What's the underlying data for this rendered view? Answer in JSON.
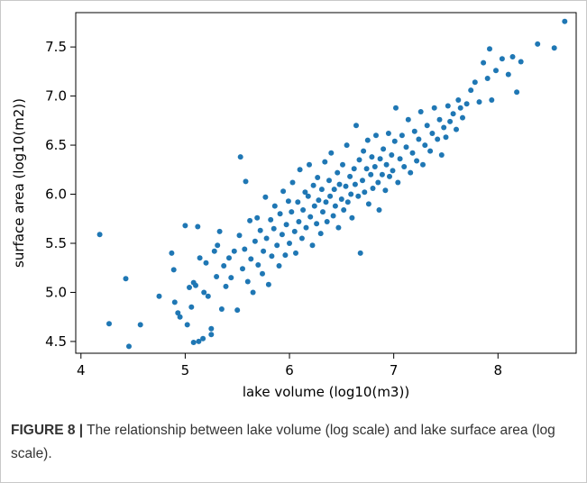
{
  "caption": {
    "figure_label": "FIGURE 8 |",
    "text": " The relationship between lake volume (log scale) and lake surface area (log scale)."
  },
  "colors": {
    "points": "#1f77b4"
  },
  "chart_data": {
    "type": "scatter",
    "xlabel": "lake volume (log10(m3))",
    "ylabel": "surface area (log10(m2))",
    "xlim": [
      3.95,
      8.75
    ],
    "ylim": [
      4.38,
      7.85
    ],
    "x_ticks": [
      4,
      5,
      6,
      7,
      8
    ],
    "y_ticks": [
      4.5,
      5.0,
      5.5,
      6.0,
      6.5,
      7.0,
      7.5
    ],
    "x_tick_labels": [
      "4",
      "5",
      "6",
      "7",
      "8"
    ],
    "y_tick_labels": [
      "4.5",
      "5.0",
      "5.5",
      "6.0",
      "6.5",
      "7.0",
      "7.5"
    ],
    "grid": false,
    "points": [
      [
        4.18,
        5.59
      ],
      [
        4.27,
        4.68
      ],
      [
        4.43,
        5.14
      ],
      [
        4.46,
        4.45
      ],
      [
        4.57,
        4.67
      ],
      [
        4.75,
        4.96
      ],
      [
        4.87,
        5.4
      ],
      [
        4.89,
        5.23
      ],
      [
        4.9,
        4.9
      ],
      [
        4.93,
        4.79
      ],
      [
        4.95,
        4.75
      ],
      [
        5.0,
        5.68
      ],
      [
        5.02,
        4.67
      ],
      [
        5.04,
        5.05
      ],
      [
        5.06,
        4.85
      ],
      [
        5.08,
        5.1
      ],
      [
        5.08,
        4.49
      ],
      [
        5.1,
        5.07
      ],
      [
        5.12,
        5.67
      ],
      [
        5.13,
        4.5
      ],
      [
        5.14,
        5.35
      ],
      [
        5.17,
        4.53
      ],
      [
        5.18,
        5.0
      ],
      [
        5.2,
        5.3
      ],
      [
        5.22,
        4.96
      ],
      [
        5.25,
        4.63
      ],
      [
        5.25,
        4.57
      ],
      [
        5.28,
        5.42
      ],
      [
        5.3,
        5.16
      ],
      [
        5.31,
        5.48
      ],
      [
        5.33,
        5.62
      ],
      [
        5.35,
        4.83
      ],
      [
        5.37,
        5.27
      ],
      [
        5.39,
        5.06
      ],
      [
        5.42,
        5.35
      ],
      [
        5.44,
        5.15
      ],
      [
        5.47,
        5.42
      ],
      [
        5.5,
        4.82
      ],
      [
        5.52,
        5.58
      ],
      [
        5.53,
        6.38
      ],
      [
        5.55,
        5.24
      ],
      [
        5.57,
        5.44
      ],
      [
        5.58,
        6.13
      ],
      [
        5.6,
        5.11
      ],
      [
        5.62,
        5.73
      ],
      [
        5.63,
        5.34
      ],
      [
        5.65,
        5.0
      ],
      [
        5.67,
        5.52
      ],
      [
        5.69,
        5.76
      ],
      [
        5.7,
        5.28
      ],
      [
        5.72,
        5.63
      ],
      [
        5.74,
        5.19
      ],
      [
        5.75,
        5.42
      ],
      [
        5.77,
        5.97
      ],
      [
        5.78,
        5.55
      ],
      [
        5.8,
        5.08
      ],
      [
        5.82,
        5.74
      ],
      [
        5.83,
        5.37
      ],
      [
        5.85,
        5.65
      ],
      [
        5.86,
        5.88
      ],
      [
        5.88,
        5.48
      ],
      [
        5.9,
        5.27
      ],
      [
        5.91,
        5.8
      ],
      [
        5.93,
        5.59
      ],
      [
        5.94,
        6.03
      ],
      [
        5.96,
        5.38
      ],
      [
        5.97,
        5.69
      ],
      [
        5.99,
        5.93
      ],
      [
        6.0,
        5.5
      ],
      [
        6.02,
        5.82
      ],
      [
        6.03,
        6.12
      ],
      [
        6.05,
        5.62
      ],
      [
        6.06,
        5.4
      ],
      [
        6.08,
        5.92
      ],
      [
        6.09,
        5.72
      ],
      [
        6.1,
        6.25
      ],
      [
        6.12,
        5.55
      ],
      [
        6.13,
        5.84
      ],
      [
        6.15,
        6.02
      ],
      [
        6.16,
        5.66
      ],
      [
        6.18,
        5.98
      ],
      [
        6.19,
        6.3
      ],
      [
        6.2,
        5.77
      ],
      [
        6.22,
        5.48
      ],
      [
        6.23,
        6.09
      ],
      [
        6.24,
        5.88
      ],
      [
        6.26,
        5.7
      ],
      [
        6.27,
        6.17
      ],
      [
        6.28,
        5.94
      ],
      [
        6.3,
        5.6
      ],
      [
        6.31,
        6.05
      ],
      [
        6.32,
        5.82
      ],
      [
        6.34,
        6.33
      ],
      [
        6.35,
        5.92
      ],
      [
        6.36,
        5.72
      ],
      [
        6.38,
        6.14
      ],
      [
        6.39,
        5.98
      ],
      [
        6.4,
        6.42
      ],
      [
        6.42,
        5.78
      ],
      [
        6.43,
        6.05
      ],
      [
        6.44,
        5.88
      ],
      [
        6.46,
        6.22
      ],
      [
        6.47,
        5.66
      ],
      [
        6.48,
        6.1
      ],
      [
        6.5,
        5.95
      ],
      [
        6.51,
        6.3
      ],
      [
        6.52,
        5.84
      ],
      [
        6.54,
        6.08
      ],
      [
        6.55,
        6.5
      ],
      [
        6.56,
        5.92
      ],
      [
        6.58,
        6.18
      ],
      [
        6.59,
        6.0
      ],
      [
        6.6,
        5.76
      ],
      [
        6.62,
        6.26
      ],
      [
        6.63,
        6.1
      ],
      [
        6.64,
        6.7
      ],
      [
        6.66,
        5.98
      ],
      [
        6.67,
        6.35
      ],
      [
        6.68,
        5.4
      ],
      [
        6.7,
        6.14
      ],
      [
        6.71,
        6.44
      ],
      [
        6.72,
        6.02
      ],
      [
        6.74,
        6.26
      ],
      [
        6.75,
        6.55
      ],
      [
        6.76,
        5.9
      ],
      [
        6.78,
        6.2
      ],
      [
        6.79,
        6.38
      ],
      [
        6.8,
        6.06
      ],
      [
        6.82,
        6.28
      ],
      [
        6.83,
        6.6
      ],
      [
        6.85,
        6.12
      ],
      [
        6.86,
        5.84
      ],
      [
        6.87,
        6.36
      ],
      [
        6.89,
        6.2
      ],
      [
        6.9,
        6.46
      ],
      [
        6.92,
        6.04
      ],
      [
        6.93,
        6.3
      ],
      [
        6.95,
        6.62
      ],
      [
        6.96,
        6.18
      ],
      [
        6.98,
        6.4
      ],
      [
        6.99,
        6.24
      ],
      [
        7.01,
        6.54
      ],
      [
        7.02,
        6.88
      ],
      [
        7.04,
        6.12
      ],
      [
        7.06,
        6.36
      ],
      [
        7.08,
        6.6
      ],
      [
        7.1,
        6.28
      ],
      [
        7.12,
        6.48
      ],
      [
        7.14,
        6.76
      ],
      [
        7.16,
        6.22
      ],
      [
        7.18,
        6.42
      ],
      [
        7.2,
        6.64
      ],
      [
        7.22,
        6.34
      ],
      [
        7.24,
        6.56
      ],
      [
        7.26,
        6.84
      ],
      [
        7.28,
        6.3
      ],
      [
        7.3,
        6.5
      ],
      [
        7.32,
        6.7
      ],
      [
        7.35,
        6.44
      ],
      [
        7.37,
        6.62
      ],
      [
        7.39,
        6.88
      ],
      [
        7.42,
        6.56
      ],
      [
        7.44,
        6.76
      ],
      [
        7.46,
        6.4
      ],
      [
        7.48,
        6.68
      ],
      [
        7.5,
        6.58
      ],
      [
        7.52,
        6.9
      ],
      [
        7.54,
        6.74
      ],
      [
        7.57,
        6.82
      ],
      [
        7.6,
        6.66
      ],
      [
        7.62,
        6.96
      ],
      [
        7.64,
        6.88
      ],
      [
        7.66,
        6.78
      ],
      [
        7.7,
        6.92
      ],
      [
        7.74,
        7.06
      ],
      [
        7.78,
        7.14
      ],
      [
        7.82,
        6.94
      ],
      [
        7.86,
        7.34
      ],
      [
        7.9,
        7.18
      ],
      [
        7.92,
        7.48
      ],
      [
        7.94,
        6.96
      ],
      [
        7.98,
        7.26
      ],
      [
        8.04,
        7.38
      ],
      [
        8.1,
        7.22
      ],
      [
        8.14,
        7.4
      ],
      [
        8.18,
        7.04
      ],
      [
        8.22,
        7.35
      ],
      [
        8.38,
        7.53
      ],
      [
        8.54,
        7.49
      ],
      [
        8.64,
        7.76
      ]
    ]
  }
}
